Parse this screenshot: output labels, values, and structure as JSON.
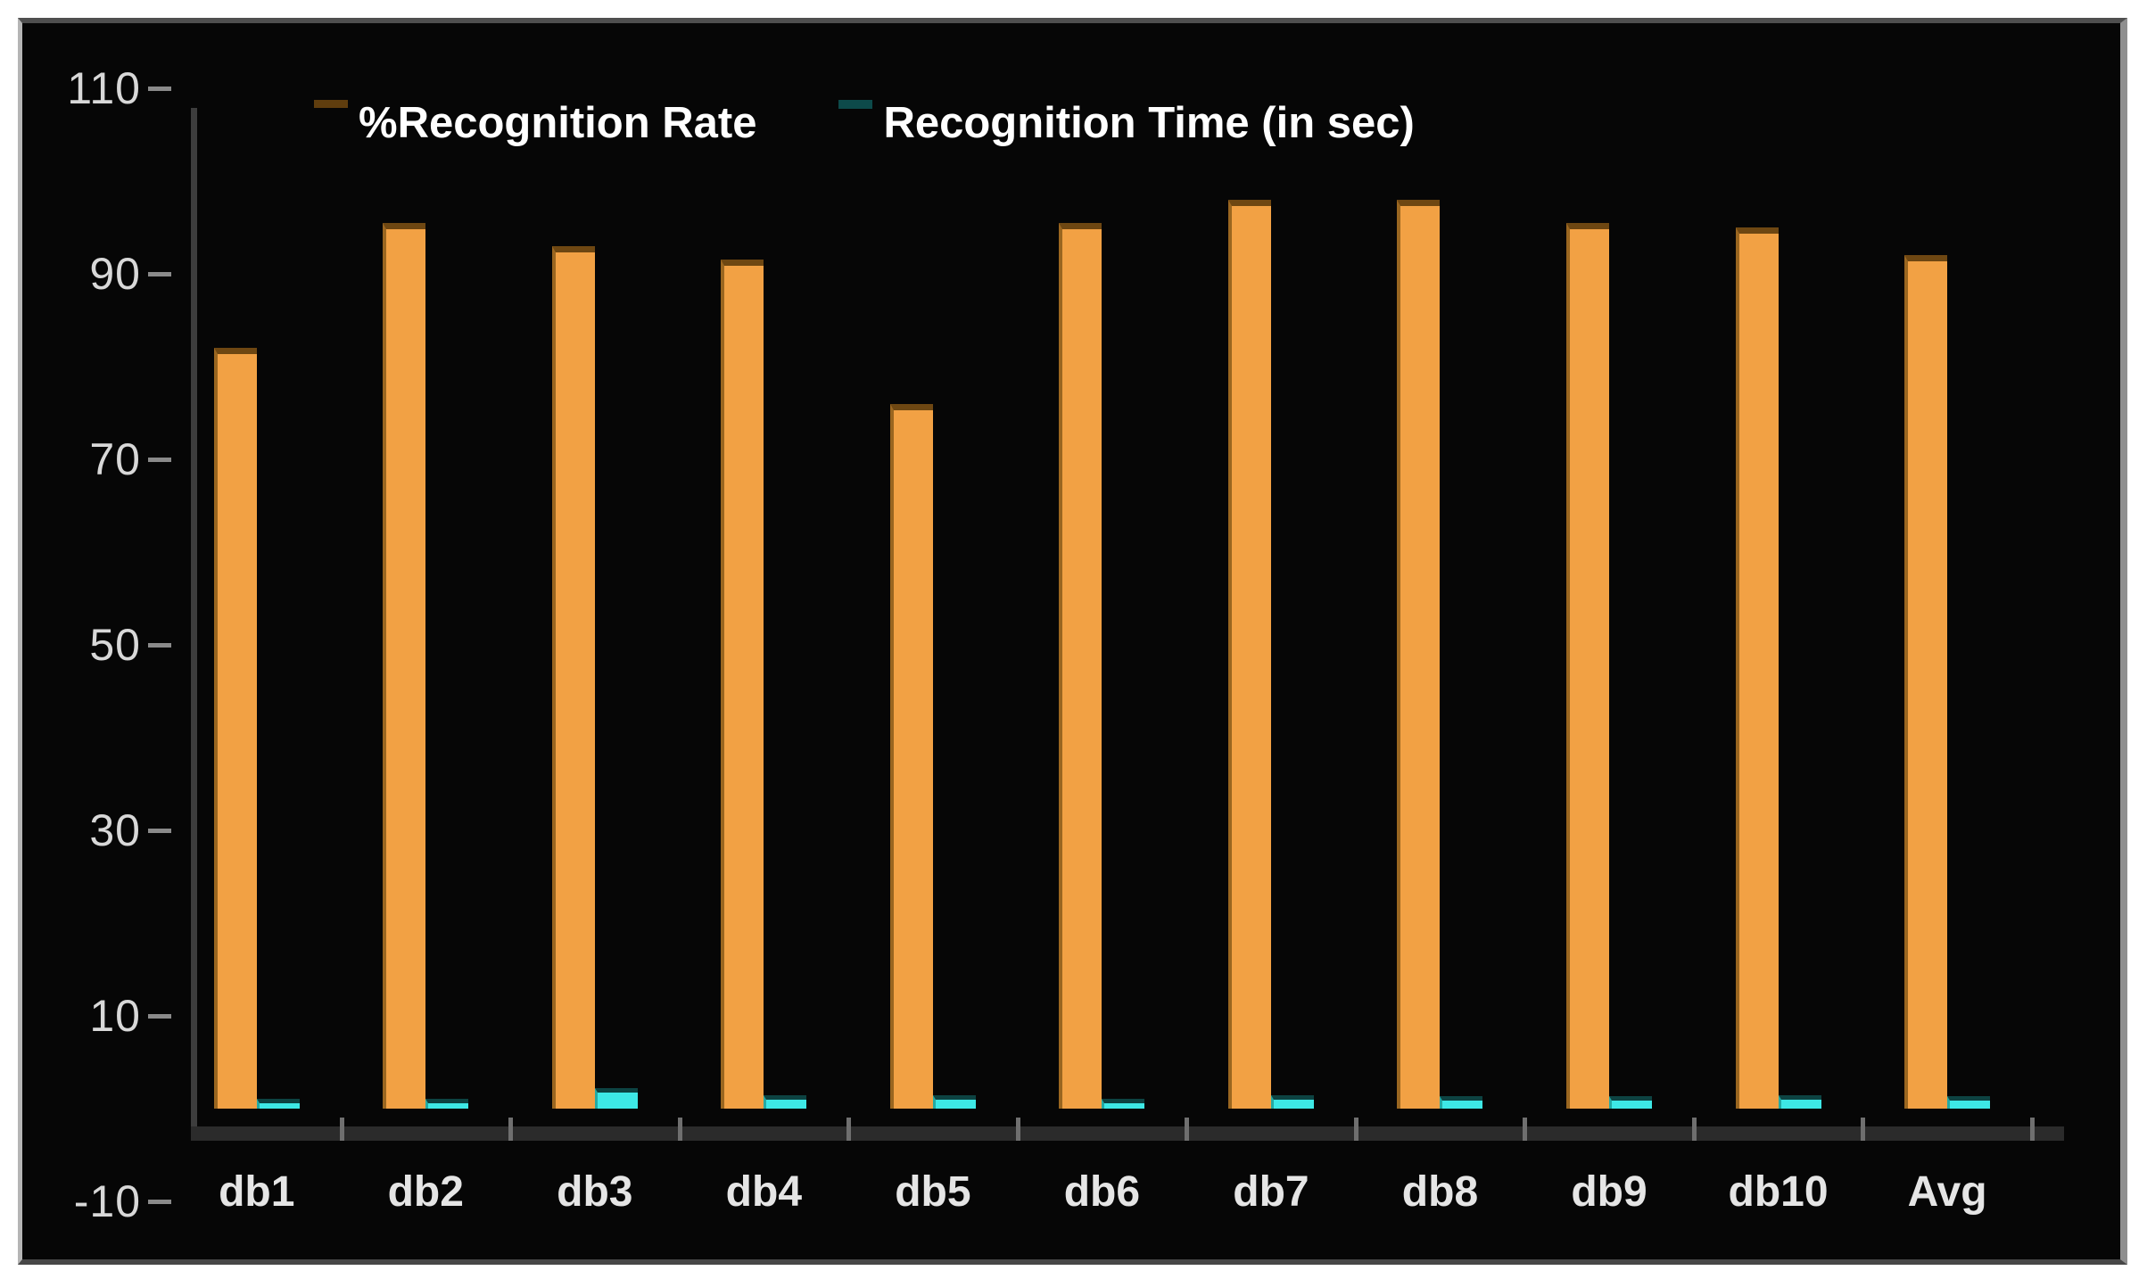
{
  "chart_data": {
    "type": "bar",
    "title": "",
    "xlabel": "",
    "ylabel": "",
    "categories": [
      "db1",
      "db2",
      "db3",
      "db4",
      "db5",
      "db6",
      "db7",
      "db8",
      "db9",
      "db10",
      "Avg"
    ],
    "series": [
      {
        "name": "%Recognition Rate",
        "color": "#F2A144",
        "values": [
          82,
          95.5,
          93,
          91.5,
          76,
          95.5,
          98,
          98,
          95.5,
          95,
          92
        ]
      },
      {
        "name": "Recognition Time (in sec)",
        "color": "#3DE8E6",
        "values": [
          1.1,
          1.1,
          2.2,
          1.4,
          1.4,
          1.1,
          1.4,
          1.3,
          1.3,
          1.4,
          1.3
        ]
      }
    ],
    "ylim": [
      -10,
      110
    ],
    "yticks": [
      110,
      90,
      70,
      50,
      30,
      10,
      -10
    ],
    "grid": false,
    "legend_position": "top",
    "plot_background": "#060606",
    "text_color": "#d8d8d8"
  }
}
